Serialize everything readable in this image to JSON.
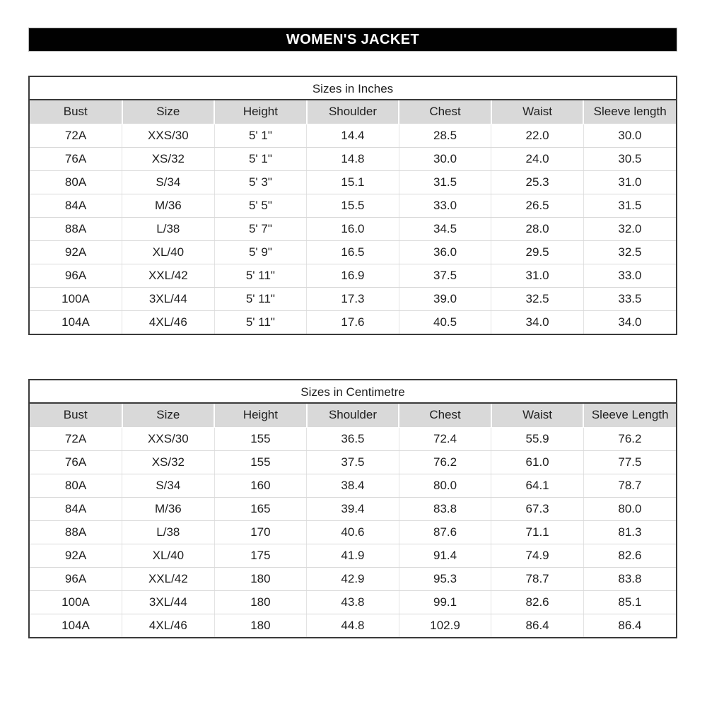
{
  "page": {
    "title": "WOMEN'S JACKET"
  },
  "colors": {
    "banner_bg": "#010101",
    "banner_text": "#ffffff",
    "header_row_bg": "#d9d9d9",
    "grid_line": "#d9d9d9",
    "outer_border": "#3a3a3a",
    "text": "#1f1f1f"
  },
  "tables": [
    {
      "title": "Sizes in Inches",
      "headers": [
        "Bust",
        "Size",
        "Height",
        "Shoulder",
        "Chest",
        "Waist",
        "Sleeve length"
      ],
      "rows": [
        [
          "72A",
          "XXS/30",
          "5' 1\"",
          "14.4",
          "28.5",
          "22.0",
          "30.0"
        ],
        [
          "76A",
          "XS/32",
          "5' 1\"",
          "14.8",
          "30.0",
          "24.0",
          "30.5"
        ],
        [
          "80A",
          "S/34",
          "5' 3\"",
          "15.1",
          "31.5",
          "25.3",
          "31.0"
        ],
        [
          "84A",
          "M/36",
          "5' 5\"",
          "15.5",
          "33.0",
          "26.5",
          "31.5"
        ],
        [
          "88A",
          "L/38",
          "5' 7\"",
          "16.0",
          "34.5",
          "28.0",
          "32.0"
        ],
        [
          "92A",
          "XL/40",
          "5' 9\"",
          "16.5",
          "36.0",
          "29.5",
          "32.5"
        ],
        [
          "96A",
          "XXL/42",
          "5' 11\"",
          "16.9",
          "37.5",
          "31.0",
          "33.0"
        ],
        [
          "100A",
          "3XL/44",
          "5' 11\"",
          "17.3",
          "39.0",
          "32.5",
          "33.5"
        ],
        [
          "104A",
          "4XL/46",
          "5' 11\"",
          "17.6",
          "40.5",
          "34.0",
          "34.0"
        ]
      ]
    },
    {
      "title": "Sizes in Centimetre",
      "headers": [
        "Bust",
        "Size",
        "Height",
        "Shoulder",
        "Chest",
        "Waist",
        "Sleeve Length"
      ],
      "rows": [
        [
          "72A",
          "XXS/30",
          "155",
          "36.5",
          "72.4",
          "55.9",
          "76.2"
        ],
        [
          "76A",
          "XS/32",
          "155",
          "37.5",
          "76.2",
          "61.0",
          "77.5"
        ],
        [
          "80A",
          "S/34",
          "160",
          "38.4",
          "80.0",
          "64.1",
          "78.7"
        ],
        [
          "84A",
          "M/36",
          "165",
          "39.4",
          "83.8",
          "67.3",
          "80.0"
        ],
        [
          "88A",
          "L/38",
          "170",
          "40.6",
          "87.6",
          "71.1",
          "81.3"
        ],
        [
          "92A",
          "XL/40",
          "175",
          "41.9",
          "91.4",
          "74.9",
          "82.6"
        ],
        [
          "96A",
          "XXL/42",
          "180",
          "42.9",
          "95.3",
          "78.7",
          "83.8"
        ],
        [
          "100A",
          "3XL/44",
          "180",
          "43.8",
          "99.1",
          "82.6",
          "85.1"
        ],
        [
          "104A",
          "4XL/46",
          "180",
          "44.8",
          "102.9",
          "86.4",
          "86.4"
        ]
      ]
    }
  ]
}
